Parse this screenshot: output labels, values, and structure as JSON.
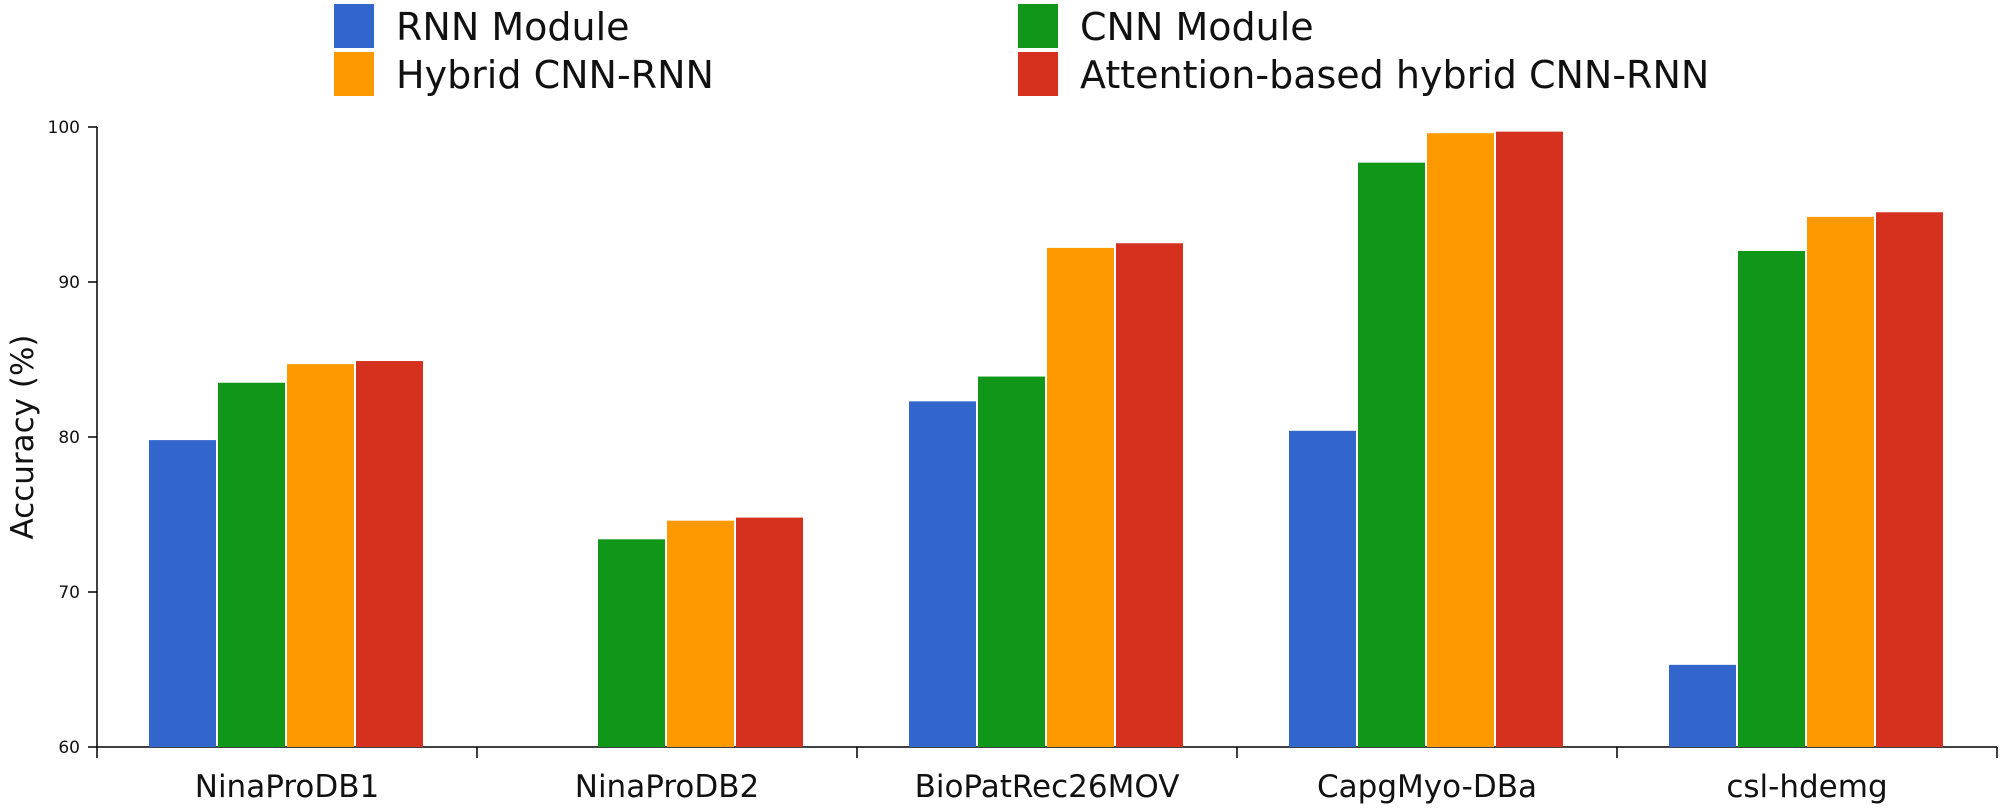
{
  "chart_data": {
    "type": "bar",
    "title": "",
    "xlabel": "",
    "ylabel": "Accuracy (%)",
    "ylim": [
      60,
      100
    ],
    "yticks": [
      "60",
      "70",
      "80",
      "90",
      "100"
    ],
    "grid": false,
    "legend_position": "top",
    "categories": [
      "NinaProDB1",
      "NinaProDB2",
      "BioPatRec26MOV",
      "CapgMyo-DBa",
      "csl-hdemg"
    ],
    "series": [
      {
        "name": "RNN Module",
        "color": "#3366cc",
        "values": [
          79.8,
          null,
          82.3,
          80.4,
          65.3
        ]
      },
      {
        "name": "CNN Module",
        "color": "#109618",
        "values": [
          83.5,
          73.4,
          83.9,
          97.7,
          92.0
        ]
      },
      {
        "name": "Hybrid CNN-RNN",
        "color": "#ff9900",
        "values": [
          84.7,
          74.6,
          92.2,
          99.6,
          94.2
        ]
      },
      {
        "name": "Attention-based hybrid CNN-RNN",
        "color": "#d6301e",
        "values": [
          84.9,
          74.8,
          92.5,
          99.7,
          94.5
        ]
      }
    ]
  }
}
